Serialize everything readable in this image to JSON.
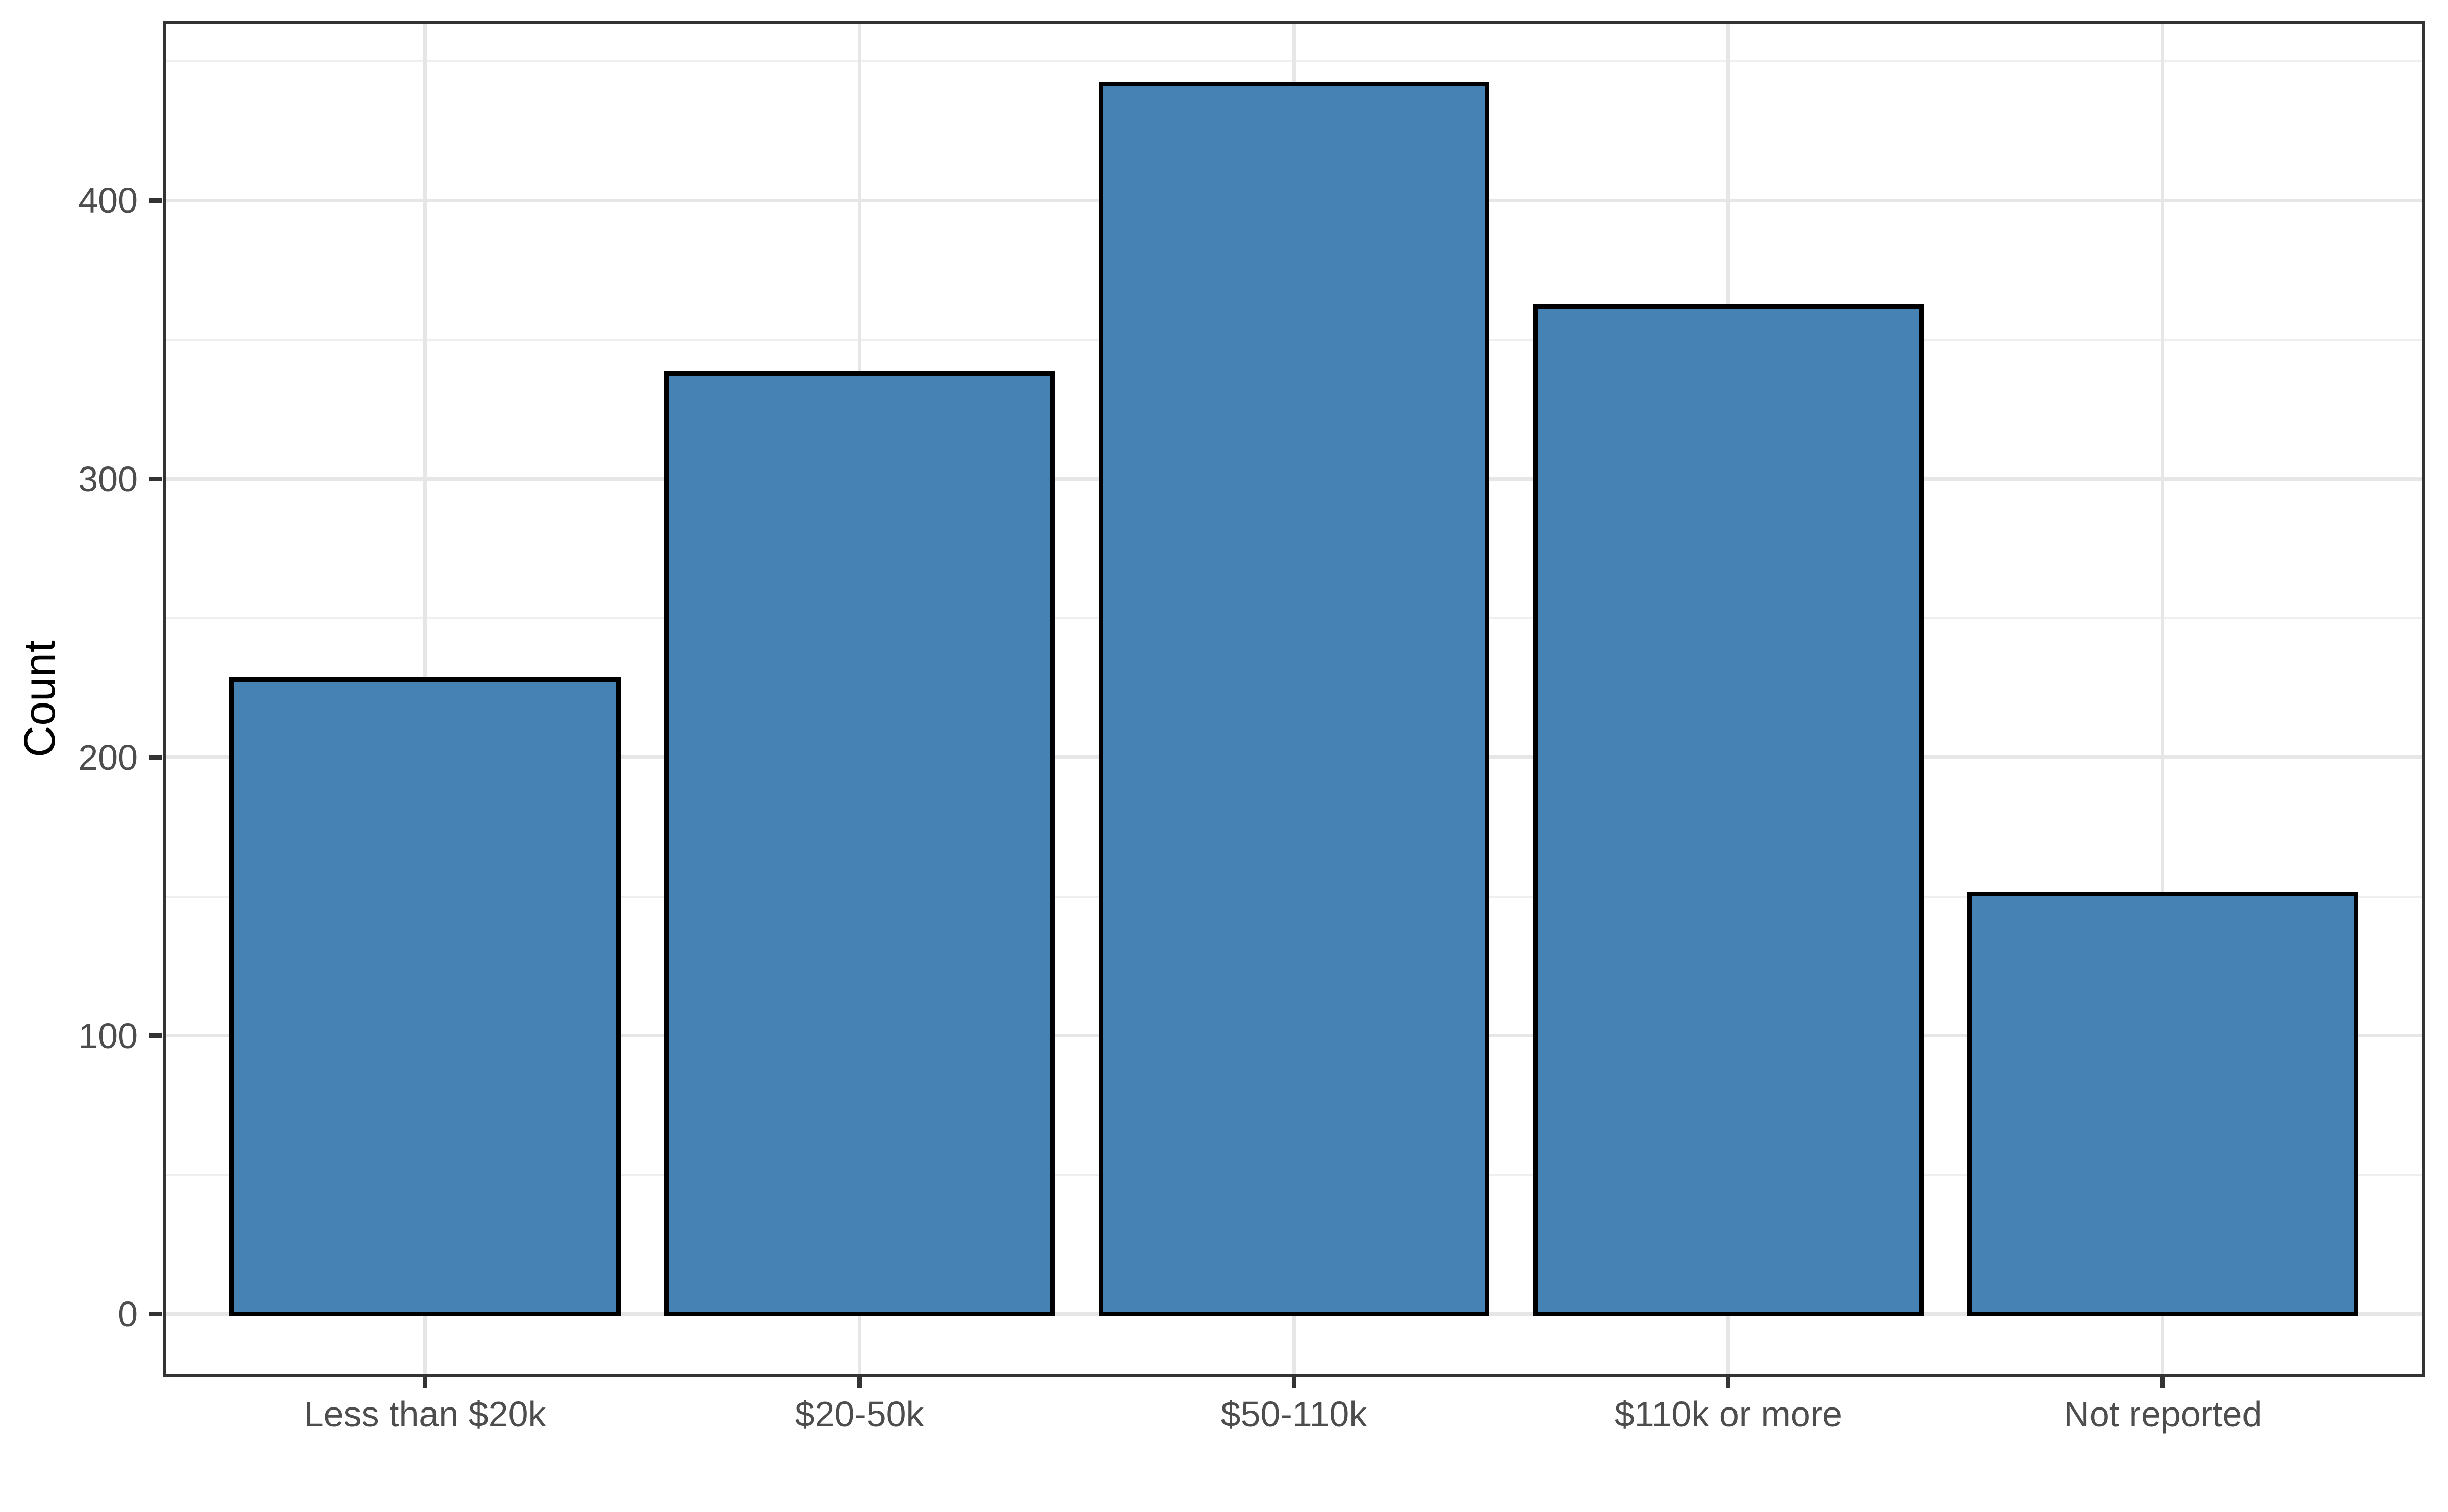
{
  "figure": {
    "background": "#FFFFFF"
  },
  "chart_data": {
    "type": "bar",
    "title": "",
    "xlabel": "",
    "ylabel": "Count",
    "categories": [
      "Less than $20k",
      "$20-50k",
      "$50-110k",
      "$110k or more",
      "Not reported"
    ],
    "values": [
      228,
      338,
      442,
      362,
      151
    ],
    "yticks": [
      0,
      100,
      200,
      300,
      400
    ],
    "yticks_minor": [
      50,
      150,
      250,
      350,
      450
    ],
    "ylim": [
      -22,
      464
    ],
    "bar_width_fraction": 0.9,
    "legend": "none",
    "grid": {
      "horizontal_major": true,
      "horizontal_minor": true,
      "vertical_major": true,
      "vertical_minor": false
    },
    "colors": {
      "bar_fill": "#4682B4",
      "bar_stroke": "#000000",
      "grid_major": "#E6E6E6",
      "grid_minor": "#EFEFEF",
      "panel_border": "#333333",
      "tick_mark": "#333333",
      "tick_label": "#4D4D4D",
      "axis_title": "#000000",
      "panel_background": "#FFFFFF"
    }
  }
}
